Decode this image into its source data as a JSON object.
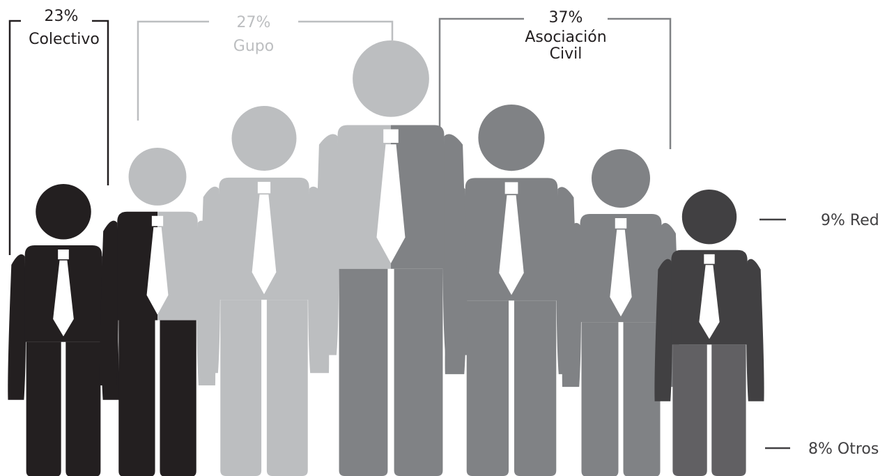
{
  "chart_data": {
    "type": "pictogram",
    "series": [
      {
        "name": "Colectivo",
        "value": 23,
        "unit": "%",
        "label_line1": "23%",
        "label_line2": "Colectivo",
        "color": "#231f20"
      },
      {
        "name": "Gupo",
        "value": 27,
        "unit": "%",
        "label_line1": "27%",
        "label_line2": "Gupo",
        "color": "#bcbec0"
      },
      {
        "name": "Asociación Civil",
        "value": 37,
        "unit": "%",
        "label_line1": "37%",
        "label_line2": "Asociación",
        "label_line3": "Civil",
        "color": "#808285"
      },
      {
        "name": "Red",
        "value": 9,
        "unit": "%",
        "label": "9% Red",
        "color": "#414042"
      },
      {
        "name": "Otros",
        "value": 8,
        "unit": "%",
        "label": "8% Otros",
        "color": "#616063"
      }
    ]
  },
  "colors": {
    "tie": "#ffffff",
    "background": "#ffffff"
  }
}
